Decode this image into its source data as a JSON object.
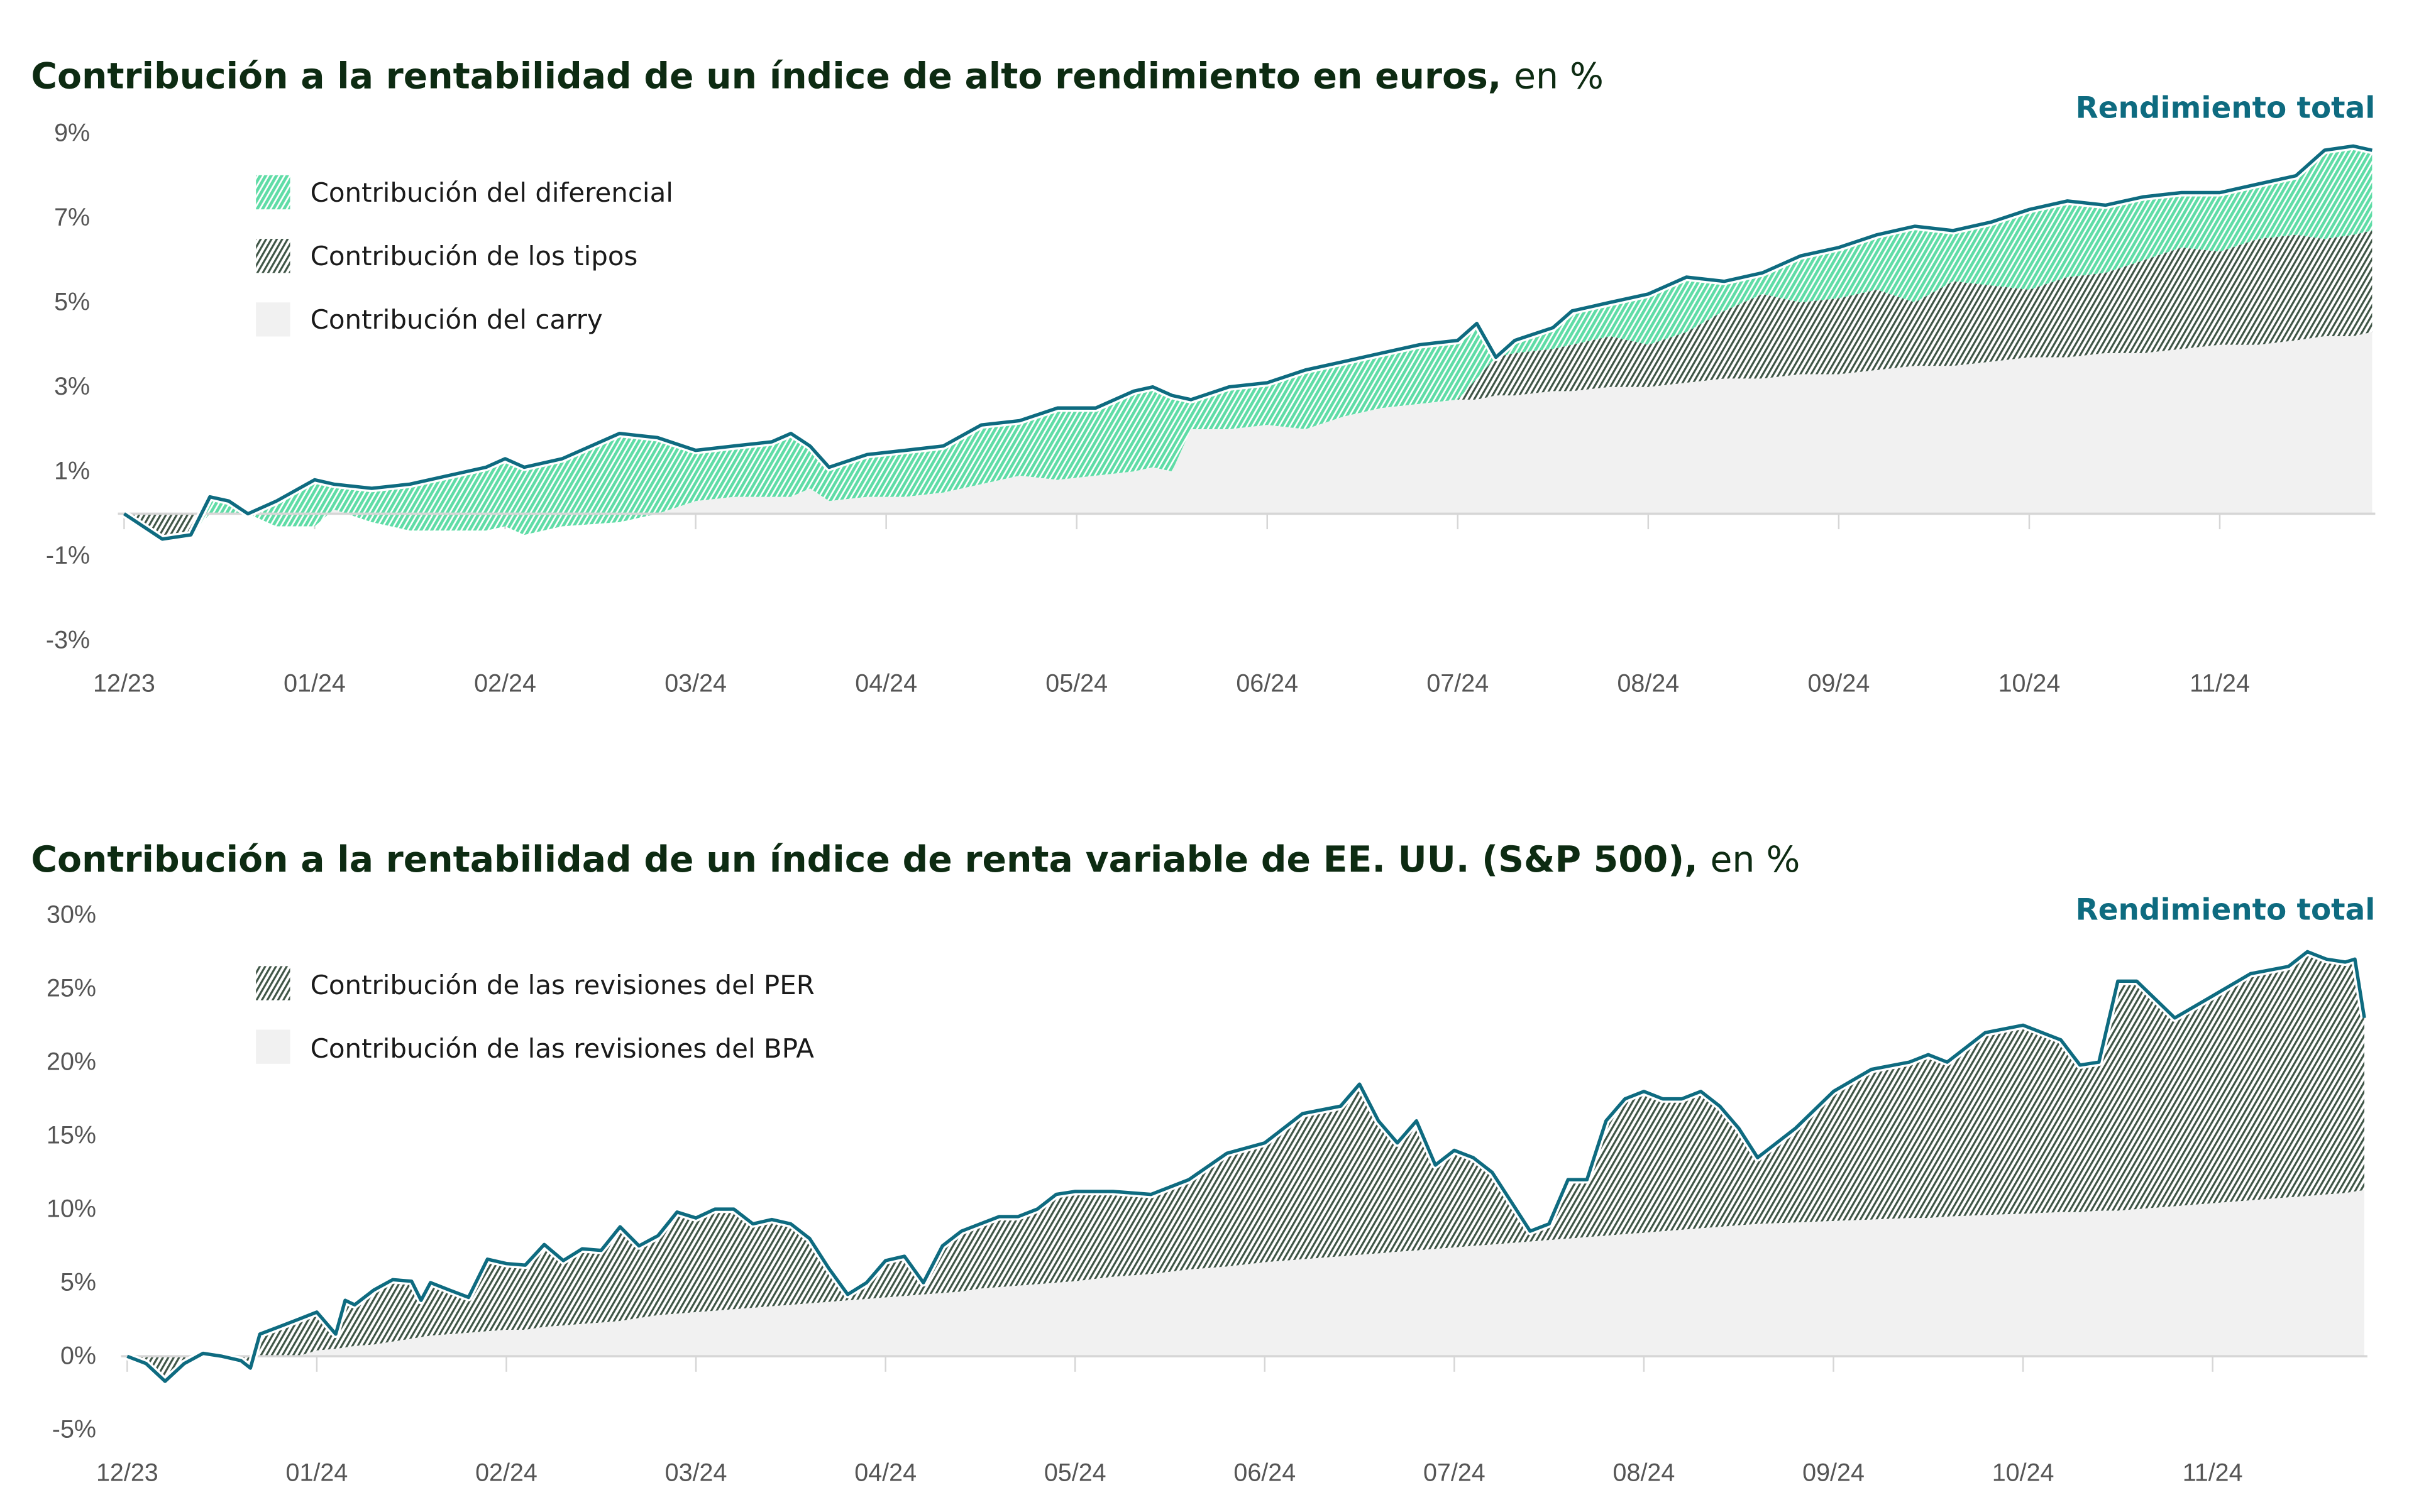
{
  "colors": {
    "total_line": "#0e6b80",
    "diferencial": "#5fdca6",
    "tipos": "#3f5546",
    "carry": "#f1f1f1",
    "per": "#3f5546",
    "bpa": "#f1f1f1",
    "axis": "#d6d6d6"
  },
  "chart_data": [
    {
      "type": "area",
      "title": "Contribución a la rentabilidad de un índice de alto rendimiento en euros,",
      "title_unit": "en %",
      "line_label": "Rendimiento total",
      "x_unit": "months since 12/23",
      "xlim": [
        0,
        11.8
      ],
      "ylim": [
        -3,
        9
      ],
      "yticks": [
        9,
        7,
        5,
        3,
        1,
        -1,
        -3
      ],
      "ytick_labels": [
        "9%",
        "7%",
        "5%",
        "3%",
        "1%",
        "-1%",
        "-3%"
      ],
      "xtick_labels": [
        "12/23",
        "01/24",
        "02/24",
        "03/24",
        "04/24",
        "05/24",
        "06/24",
        "07/24",
        "08/24",
        "09/24",
        "10/24",
        "11/24"
      ],
      "legend": [
        "Contribución del diferencial",
        "Contribución de los tipos",
        "Contribución del carry"
      ],
      "legend_position": "top-left",
      "x": [
        0,
        0.2,
        0.35,
        0.45,
        0.55,
        0.65,
        0.8,
        1.0,
        1.1,
        1.3,
        1.5,
        1.7,
        1.9,
        2.0,
        2.1,
        2.3,
        2.6,
        2.8,
        3.0,
        3.2,
        3.4,
        3.5,
        3.6,
        3.7,
        3.9,
        4.1,
        4.3,
        4.5,
        4.7,
        4.9,
        5.1,
        5.3,
        5.4,
        5.5,
        5.6,
        5.8,
        6.0,
        6.2,
        6.4,
        6.6,
        6.8,
        7.0,
        7.1,
        7.2,
        7.3,
        7.5,
        7.6,
        7.8,
        8.0,
        8.2,
        8.4,
        8.6,
        8.8,
        9.0,
        9.2,
        9.4,
        9.6,
        9.8,
        10.0,
        10.2,
        10.4,
        10.6,
        10.8,
        11.0,
        11.2,
        11.4,
        11.55,
        11.7,
        11.8
      ],
      "series": [
        {
          "name": "Rendimiento total",
          "values": [
            0.0,
            -0.6,
            -0.5,
            0.4,
            0.3,
            0.0,
            0.3,
            0.8,
            0.7,
            0.6,
            0.7,
            0.9,
            1.1,
            1.3,
            1.1,
            1.3,
            1.9,
            1.8,
            1.5,
            1.6,
            1.7,
            1.9,
            1.6,
            1.1,
            1.4,
            1.5,
            1.6,
            2.1,
            2.2,
            2.5,
            2.5,
            2.9,
            3.0,
            2.8,
            2.7,
            3.0,
            3.1,
            3.4,
            3.6,
            3.8,
            4.0,
            4.1,
            4.5,
            3.7,
            4.1,
            4.4,
            4.8,
            5.0,
            5.2,
            5.6,
            5.5,
            5.7,
            6.1,
            6.3,
            6.6,
            6.8,
            6.7,
            6.9,
            7.2,
            7.4,
            7.3,
            7.5,
            7.6,
            7.6,
            7.8,
            8.0,
            8.6,
            8.7,
            8.6
          ]
        },
        {
          "name": "Contribución del carry",
          "values": [
            0.0,
            0.0,
            0.0,
            0.0,
            0.0,
            0.0,
            -0.3,
            -0.3,
            0.1,
            -0.2,
            -0.4,
            -0.4,
            -0.4,
            -0.3,
            -0.5,
            -0.3,
            -0.2,
            0.0,
            0.3,
            0.4,
            0.4,
            0.4,
            0.6,
            0.3,
            0.4,
            0.4,
            0.5,
            0.7,
            0.9,
            0.8,
            0.9,
            1.0,
            1.1,
            1.0,
            2.0,
            2.0,
            2.1,
            2.0,
            2.3,
            2.5,
            2.6,
            2.7,
            2.7,
            2.8,
            2.8,
            2.9,
            2.9,
            3.0,
            3.0,
            3.1,
            3.2,
            3.2,
            3.3,
            3.3,
            3.4,
            3.5,
            3.5,
            3.6,
            3.7,
            3.7,
            3.8,
            3.8,
            3.9,
            4.0,
            4.0,
            4.1,
            4.2,
            4.2,
            4.3
          ]
        },
        {
          "name": "Contribución de los tipos",
          "values": [
            0.0,
            0.0,
            0.0,
            0.0,
            0.0,
            0.0,
            0.0,
            0.0,
            0.0,
            0.0,
            0.0,
            0.0,
            0.0,
            0.0,
            0.0,
            0.0,
            0.0,
            0.0,
            0.0,
            0.0,
            0.0,
            0.0,
            0.0,
            0.0,
            0.0,
            0.0,
            0.0,
            0.0,
            0.0,
            0.0,
            0.0,
            0.0,
            0.0,
            0.0,
            0.0,
            0.0,
            0.0,
            0.0,
            0.0,
            0.0,
            0.0,
            0.0,
            0.5,
            1.0,
            1.0,
            1.0,
            1.1,
            1.2,
            1.0,
            1.2,
            1.6,
            2.0,
            1.7,
            1.8,
            1.9,
            1.5,
            2.0,
            1.8,
            1.6,
            1.9,
            1.9,
            2.2,
            2.4,
            2.2,
            2.5,
            2.5,
            2.3,
            2.4,
            2.4
          ]
        }
      ]
    },
    {
      "type": "area",
      "title": "Contribución a la rentabilidad de un índice de renta variable de EE. UU. (S&P 500),",
      "title_unit": "en %",
      "line_label": "Rendimiento total",
      "x_unit": "months since 12/23",
      "xlim": [
        0,
        11.8
      ],
      "ylim": [
        -5,
        30
      ],
      "yticks": [
        30,
        25,
        20,
        15,
        10,
        5,
        0,
        -5
      ],
      "ytick_labels": [
        "30%",
        "25%",
        "20%",
        "15%",
        "10%",
        "5%",
        "0%",
        "-5%"
      ],
      "xtick_labels": [
        "12/23",
        "01/24",
        "02/24",
        "03/24",
        "04/24",
        "05/24",
        "06/24",
        "07/24",
        "08/24",
        "09/24",
        "10/24",
        "11/24"
      ],
      "legend": [
        "Contribución de las revisiones del PER",
        "Contribución de las revisiones del BPA"
      ],
      "legend_position": "top-left",
      "x": [
        0,
        0.1,
        0.2,
        0.3,
        0.4,
        0.5,
        0.6,
        0.65,
        0.7,
        0.8,
        0.9,
        1.0,
        1.1,
        1.15,
        1.2,
        1.3,
        1.4,
        1.5,
        1.55,
        1.6,
        1.7,
        1.8,
        1.9,
        2.0,
        2.1,
        2.2,
        2.3,
        2.4,
        2.5,
        2.6,
        2.7,
        2.8,
        2.9,
        3.0,
        3.1,
        3.2,
        3.3,
        3.4,
        3.5,
        3.6,
        3.7,
        3.8,
        3.9,
        4.0,
        4.1,
        4.2,
        4.3,
        4.4,
        4.5,
        4.6,
        4.7,
        4.8,
        4.9,
        5.0,
        5.2,
        5.4,
        5.6,
        5.8,
        6.0,
        6.2,
        6.4,
        6.5,
        6.6,
        6.7,
        6.8,
        6.9,
        7.0,
        7.1,
        7.2,
        7.3,
        7.4,
        7.5,
        7.6,
        7.7,
        7.8,
        7.9,
        8.0,
        8.1,
        8.2,
        8.3,
        8.4,
        8.5,
        8.6,
        8.8,
        9.0,
        9.2,
        9.4,
        9.5,
        9.6,
        9.8,
        10.0,
        10.2,
        10.3,
        10.4,
        10.5,
        10.6,
        10.8,
        11.0,
        11.2,
        11.4,
        11.5,
        11.6,
        11.7,
        11.75,
        11.8
      ],
      "series": [
        {
          "name": "Rendimiento total",
          "values": [
            0.0,
            -0.5,
            -1.7,
            -0.5,
            0.2,
            0.0,
            -0.3,
            -0.8,
            1.5,
            2.0,
            2.5,
            3.0,
            1.5,
            3.8,
            3.5,
            4.5,
            5.2,
            5.1,
            3.8,
            5.0,
            4.5,
            4.0,
            6.6,
            6.3,
            6.2,
            7.6,
            6.5,
            7.3,
            7.2,
            8.8,
            7.5,
            8.2,
            9.8,
            9.4,
            10.0,
            10.0,
            9.0,
            9.3,
            9.0,
            8.0,
            6.0,
            4.2,
            5.0,
            6.5,
            6.8,
            5.0,
            7.5,
            8.5,
            9.0,
            9.5,
            9.5,
            10.0,
            11.0,
            11.2,
            11.2,
            11.0,
            12.0,
            13.8,
            14.5,
            16.5,
            17.0,
            18.5,
            16.0,
            14.5,
            16.0,
            13.0,
            14.0,
            13.5,
            12.5,
            10.5,
            8.5,
            9.0,
            12.0,
            12.0,
            16.0,
            17.5,
            18.0,
            17.5,
            17.5,
            18.0,
            17.0,
            15.5,
            13.5,
            15.5,
            18.0,
            19.5,
            20.0,
            20.5,
            20.0,
            22.0,
            22.5,
            21.5,
            19.8,
            20.0,
            25.5,
            25.5,
            23.0,
            24.5,
            26.0,
            26.5,
            27.5,
            27.0,
            26.8,
            27.0,
            23.0
          ]
        },
        {
          "name": "Contribución de las revisiones del BPA",
          "values": [
            0.0,
            0.0,
            0.0,
            0.0,
            0.0,
            0.0,
            0.0,
            0.0,
            0.0,
            0.0,
            0.0,
            0.4,
            0.5,
            0.6,
            0.7,
            0.8,
            1.0,
            1.2,
            1.3,
            1.4,
            1.5,
            1.6,
            1.7,
            1.8,
            1.8,
            2.0,
            2.1,
            2.2,
            2.3,
            2.4,
            2.6,
            2.8,
            2.9,
            3.0,
            3.1,
            3.2,
            3.3,
            3.4,
            3.5,
            3.6,
            3.7,
            3.8,
            3.9,
            4.0,
            4.1,
            4.2,
            4.3,
            4.4,
            4.6,
            4.7,
            4.8,
            4.9,
            5.0,
            5.1,
            5.4,
            5.6,
            5.9,
            6.1,
            6.4,
            6.6,
            6.8,
            6.9,
            7.0,
            7.1,
            7.2,
            7.3,
            7.4,
            7.5,
            7.6,
            7.7,
            7.8,
            7.9,
            8.0,
            8.1,
            8.2,
            8.3,
            8.4,
            8.5,
            8.6,
            8.7,
            8.8,
            8.9,
            9.0,
            9.1,
            9.2,
            9.3,
            9.4,
            9.4,
            9.5,
            9.6,
            9.7,
            9.8,
            9.8,
            9.9,
            9.9,
            10.0,
            10.2,
            10.4,
            10.6,
            10.8,
            10.9,
            11.0,
            11.1,
            11.2,
            11.3
          ]
        }
      ]
    }
  ]
}
